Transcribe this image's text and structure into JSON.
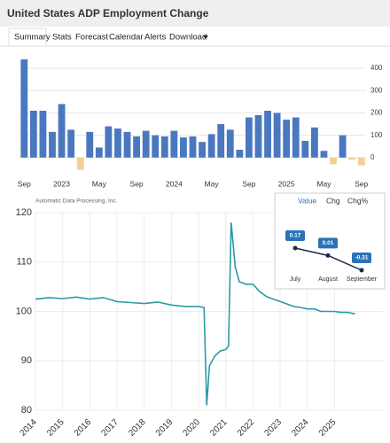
{
  "header": {
    "title": "United States ADP Employment Change"
  },
  "tabs": [
    "Summary",
    "Stats",
    "Forecast",
    "Calendar",
    "Alerts",
    "Download"
  ],
  "chart_data": [
    {
      "type": "bar",
      "categories": [
        "Sep",
        null,
        null,
        null,
        "2023",
        null,
        null,
        null,
        "May",
        null,
        null,
        null,
        "Sep",
        null,
        null,
        null,
        "2024",
        null,
        null,
        null,
        "May",
        null,
        null,
        null,
        "Sep",
        null,
        null,
        null,
        "2025",
        null,
        null,
        null,
        "May",
        null,
        null,
        null,
        "Sep"
      ],
      "values": [
        440,
        210,
        210,
        115,
        240,
        125,
        -55,
        115,
        45,
        140,
        130,
        115,
        95,
        120,
        100,
        95,
        120,
        90,
        95,
        70,
        105,
        150,
        125,
        35,
        180,
        190,
        210,
        200,
        170,
        180,
        75,
        135,
        30,
        -30,
        100,
        -10,
        -35
      ],
      "color": "#4a78c0",
      "negative_color": "#f3cf98",
      "ylim": [
        -80,
        460
      ],
      "yticks": [
        0,
        100,
        200,
        300,
        400
      ],
      "grid": true
    },
    {
      "type": "line",
      "source": "Automatic Data Processing, Inc.",
      "x": [
        2014,
        2014.5,
        2015,
        2015.5,
        2016,
        2016.5,
        2017,
        2017.5,
        2018,
        2018.5,
        2019,
        2019.5,
        2020,
        2020.2,
        2020.3,
        2020.4,
        2020.6,
        2020.8,
        2021,
        2021.1,
        2021.2,
        2021.35,
        2021.5,
        2021.75,
        2022,
        2022.25,
        2022.5,
        2022.75,
        2023,
        2023.25,
        2023.5,
        2023.75,
        2024,
        2024.25,
        2024.5,
        2024.75,
        2025,
        2025.25,
        2025.5,
        2025.75
      ],
      "values": [
        102.5,
        102.8,
        102.6,
        102.9,
        102.5,
        102.8,
        102.0,
        101.8,
        101.6,
        101.9,
        101.3,
        101.0,
        101.0,
        100.8,
        81,
        89,
        91,
        92,
        92.3,
        93,
        118,
        109,
        106,
        105.5,
        105.5,
        104,
        103,
        102.5,
        102,
        101.5,
        101,
        100.8,
        100.5,
        100.5,
        100,
        100,
        100,
        99.8,
        99.8,
        99.5
      ],
      "color": "#2c9aa6",
      "xlim": [
        2014,
        2025.9
      ],
      "xticks": [
        2014,
        2015,
        2016,
        2017,
        2018,
        2019,
        2020,
        2021,
        2022,
        2023,
        2024,
        2025
      ],
      "ylim": [
        80,
        120
      ],
      "yticks": [
        80,
        90,
        100,
        110,
        120
      ],
      "grid": true
    },
    {
      "type": "line",
      "tabs": [
        "Value",
        "Chg",
        "Chg%"
      ],
      "categories": [
        "July",
        "August",
        "September"
      ],
      "values": [
        0.17,
        0.01,
        -0.31
      ],
      "color": "#1a2a4a",
      "label_color": "#2a73b8"
    }
  ]
}
